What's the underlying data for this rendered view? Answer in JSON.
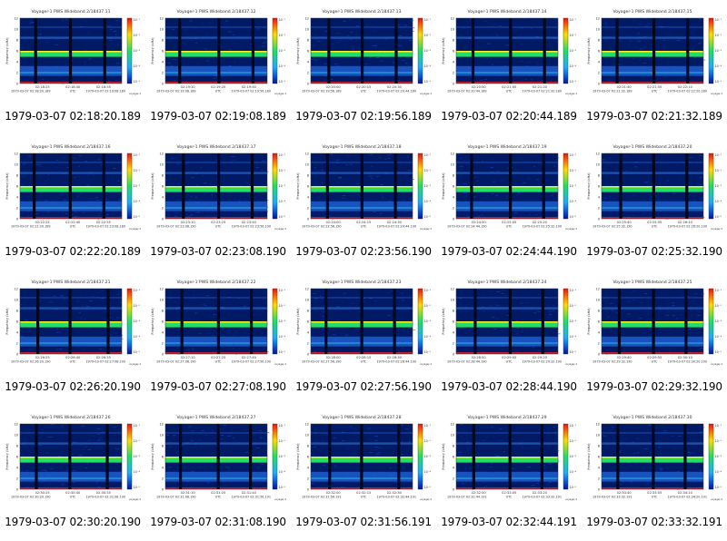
{
  "colors": {
    "background": "#001a66",
    "band_green": "#22dd66",
    "band_yellow": "#ffee22",
    "band_cyan": "#33ccee",
    "line_red": "#ee2222",
    "vertical_stripe": "#000820"
  },
  "chart_data": {
    "type": "heatmap",
    "layout": "5x4 grid of spectrograms",
    "ylabel": "Frequency (kHz)",
    "colorbar_label": "rms/Hz power spectral density",
    "y_ticks": [
      "12",
      "10",
      "8",
      "6",
      "4",
      "2",
      "0"
    ],
    "colorbar_ticks": [
      "10⁻¹",
      "10⁻²",
      "10⁻³",
      "10⁻⁴",
      "10⁻⁵"
    ],
    "utc_label": "UTC",
    "footer_label": "voyager-1",
    "panels": [
      {
        "title": "Voyager-1 PWS Wideband 2/18437.11",
        "caption": "1979-03-07 02:18:20.189",
        "x_ticks": [
          "02:18:25",
          "02:18:40",
          "02:18:55"
        ],
        "time_left": "1979-03-07 02:18:20.189",
        "time_right": "1979-03-07 02:19:08.189"
      },
      {
        "title": "Voyager-1 PWS Wideband 2/18437.12",
        "caption": "1979-03-07 02:19:08.189",
        "x_ticks": [
          "02:19:10",
          "02:19:25",
          "02:19:40"
        ],
        "time_left": "1979-03-07 02:19:08.189",
        "time_right": "1979-03-07 02:19:56.189"
      },
      {
        "title": "Voyager-1 PWS Wideband 2/18437.13",
        "caption": "1979-03-07 02:19:56.189",
        "x_ticks": [
          "02:20:00",
          "02:20:15",
          "02:20:30"
        ],
        "time_left": "1979-03-07 02:19:56.189",
        "time_right": "1979-03-07 02:20:44.189"
      },
      {
        "title": "Voyager-1 PWS Wideband 2/18437.14",
        "caption": "1979-03-07 02:20:44.189",
        "x_ticks": [
          "02:20:50",
          "02:21:05",
          "02:21:20"
        ],
        "time_left": "1979-03-07 02:20:44.189",
        "time_right": "1979-03-07 02:21:32.189"
      },
      {
        "title": "Voyager-1 PWS Wideband 2/18437.15",
        "caption": "1979-03-07 02:21:32.189",
        "x_ticks": [
          "02:21:40",
          "02:21:55",
          "02:22:10"
        ],
        "time_left": "1979-03-07 02:21:32.189",
        "time_right": "1979-03-07 02:22:20.189"
      },
      {
        "title": "Voyager-1 PWS Wideband 2/18437.16",
        "caption": "1979-03-07 02:22:20.189",
        "x_ticks": [
          "02:22:25",
          "02:22:40",
          "02:22:55"
        ],
        "time_left": "1979-03-07 02:22:20.189",
        "time_right": "1979-03-07 02:23:08.189"
      },
      {
        "title": "Voyager-1 PWS Wideband 2/18437.17",
        "caption": "1979-03-07 02:23:08.190",
        "x_ticks": [
          "02:23:10",
          "02:23:25",
          "02:23:40"
        ],
        "time_left": "1979-03-07 02:23:08.190",
        "time_right": "1979-03-07 02:23:56.190"
      },
      {
        "title": "Voyager-1 PWS Wideband 2/18437.18",
        "caption": "1979-03-07 02:23:56.190",
        "x_ticks": [
          "02:24:00",
          "02:24:15",
          "02:24:30"
        ],
        "time_left": "1979-03-07 02:23:56.190",
        "time_right": "1979-03-07 02:24:44.190"
      },
      {
        "title": "Voyager-1 PWS Wideband 2/18437.19",
        "caption": "1979-03-07 02:24:44.190",
        "x_ticks": [
          "02:24:50",
          "02:25:05",
          "02:25:20"
        ],
        "time_left": "1979-03-07 02:24:44.190",
        "time_right": "1979-03-07 02:25:32.190"
      },
      {
        "title": "Voyager-1 PWS Wideband 2/18437.20",
        "caption": "1979-03-07 02:25:32.190",
        "x_ticks": [
          "02:25:40",
          "02:25:55",
          "02:26:10"
        ],
        "time_left": "1979-03-07 02:25:32.190",
        "time_right": "1979-03-07 02:26:20.190"
      },
      {
        "title": "Voyager-1 PWS Wideband 2/18437.21",
        "caption": "1979-03-07 02:26:20.190",
        "x_ticks": [
          "02:26:25",
          "02:26:40",
          "02:26:55"
        ],
        "time_left": "1979-03-07 02:26:20.190",
        "time_right": "1979-03-07 02:27:08.190"
      },
      {
        "title": "Voyager-1 PWS Wideband 2/18437.22",
        "caption": "1979-03-07 02:27:08.190",
        "x_ticks": [
          "02:27:10",
          "02:27:25",
          "02:27:40"
        ],
        "time_left": "1979-03-07 02:27:08.190",
        "time_right": "1979-03-07 02:27:56.190"
      },
      {
        "title": "Voyager-1 PWS Wideband 2/18437.23",
        "caption": "1979-03-07 02:27:56.190",
        "x_ticks": [
          "02:28:00",
          "02:28:15",
          "02:28:30"
        ],
        "time_left": "1979-03-07 02:27:56.190",
        "time_right": "1979-03-07 02:28:44.190"
      },
      {
        "title": "Voyager-1 PWS Wideband 2/18437.24",
        "caption": "1979-03-07 02:28:44.190",
        "x_ticks": [
          "02:28:50",
          "02:29:05",
          "02:29:20"
        ],
        "time_left": "1979-03-07 02:28:44.190",
        "time_right": "1979-03-07 02:29:32.190"
      },
      {
        "title": "Voyager-1 PWS Wideband 2/18437.25",
        "caption": "1979-03-07 02:29:32.190",
        "x_ticks": [
          "02:29:40",
          "02:29:55",
          "02:30:10"
        ],
        "time_left": "1979-03-07 02:29:32.190",
        "time_right": "1979-03-07 02:30:20.190"
      },
      {
        "title": "Voyager-1 PWS Wideband 2/18437.26",
        "caption": "1979-03-07 02:30:20.190",
        "x_ticks": [
          "02:30:25",
          "02:30:40",
          "02:30:55"
        ],
        "time_left": "1979-03-07 02:30:20.190",
        "time_right": "1979-03-07 02:31:08.190"
      },
      {
        "title": "Voyager-1 PWS Wideband 2/18437.27",
        "caption": "1979-03-07 02:31:08.190",
        "x_ticks": [
          "02:31:10",
          "02:31:25",
          "02:31:40"
        ],
        "time_left": "1979-03-07 02:31:08.190",
        "time_right": "1979-03-07 02:31:56.191"
      },
      {
        "title": "Voyager-1 PWS Wideband 2/18437.28",
        "caption": "1979-03-07 02:31:56.191",
        "x_ticks": [
          "02:32:00",
          "02:32:15",
          "02:32:30"
        ],
        "time_left": "1979-03-07 02:31:56.191",
        "time_right": "1979-03-07 02:32:44.191"
      },
      {
        "title": "Voyager-1 PWS Wideband 2/18437.29",
        "caption": "1979-03-07 02:32:44.191",
        "x_ticks": [
          "02:32:50",
          "02:33:05",
          "02:33:20"
        ],
        "time_left": "1979-03-07 02:32:44.191",
        "time_right": "1979-03-07 02:33:32.191"
      },
      {
        "title": "Voyager-1 PWS Wideband 2/18437.30",
        "caption": "1979-03-07 02:33:32.191",
        "x_ticks": [
          "02:33:40",
          "02:33:55",
          "02:34:10"
        ],
        "time_left": "1979-03-07 02:33:32.191",
        "time_right": "1979-03-07 02:34:20.191"
      }
    ]
  }
}
